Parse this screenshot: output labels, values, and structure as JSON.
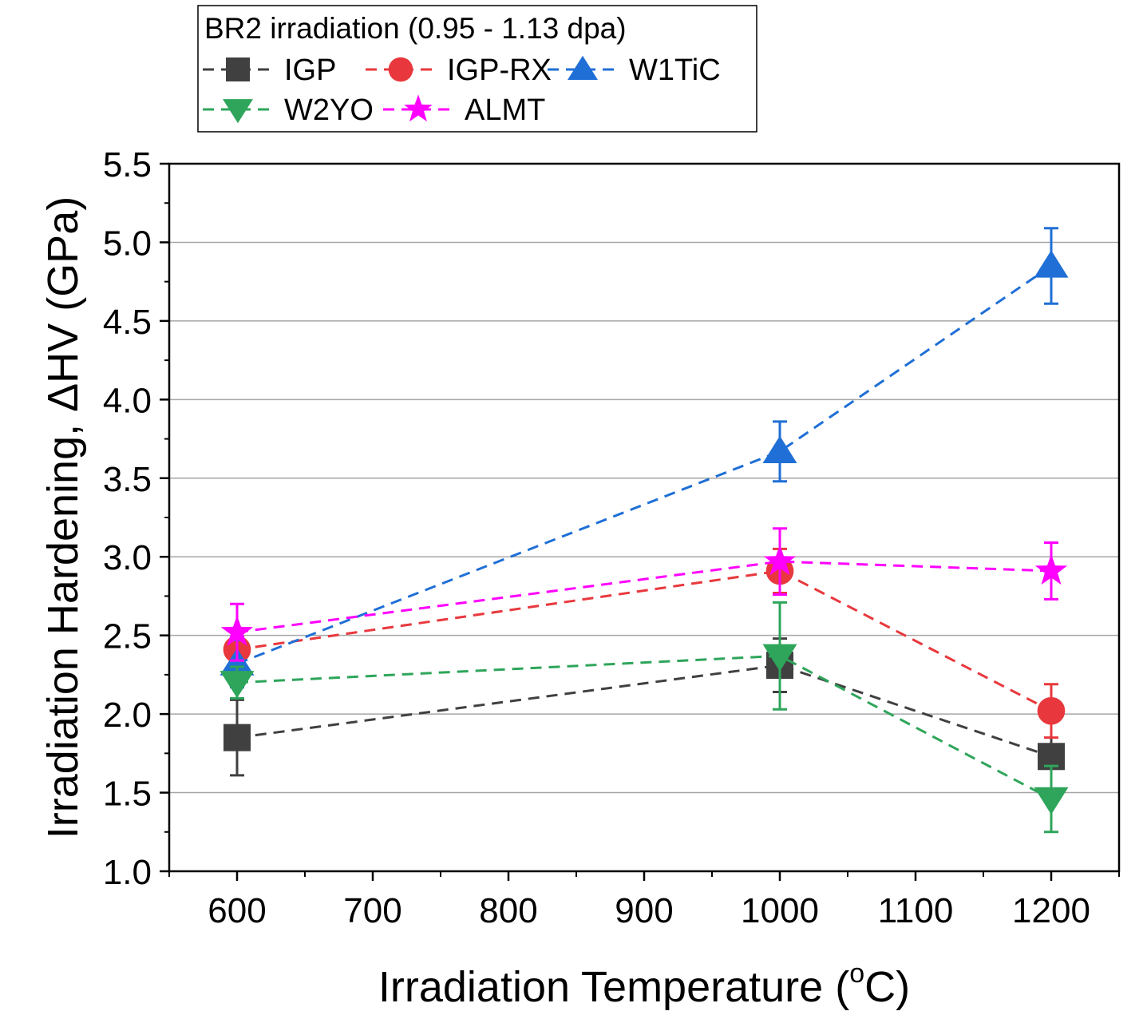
{
  "chart_data": {
    "type": "line",
    "legend_title": "BR2 irradiation (0.95 - 1.13 dpa)",
    "xlabel": "Irradiation Temperature (",
    "xlabel_sup": "o",
    "xlabel_end": "C)",
    "ylabel": "Irradiation Hardening, ΔHV (GPa)",
    "xlim": [
      550,
      1250
    ],
    "ylim": [
      1.0,
      5.5
    ],
    "x_ticks": [
      600,
      700,
      800,
      900,
      1000,
      1100,
      1200
    ],
    "x_tick_labels": [
      "600",
      "700",
      "800",
      "900",
      "1000",
      "1100",
      "1200"
    ],
    "y_ticks": [
      1.0,
      1.5,
      2.0,
      2.5,
      3.0,
      3.5,
      4.0,
      4.5,
      5.0,
      5.5
    ],
    "y_tick_labels": [
      "1.0",
      "1.5",
      "2.0",
      "2.5",
      "3.0",
      "3.5",
      "4.0",
      "4.5",
      "5.0",
      "5.5"
    ],
    "grid": "horizontal",
    "legend_position": "top, above plot",
    "x": [
      600,
      1000,
      1200
    ],
    "series": [
      {
        "name": "IGP",
        "marker": "square",
        "color": "#404040",
        "values": [
          1.85,
          2.31,
          1.73
        ],
        "errors": [
          0.24,
          0.17,
          0.24
        ]
      },
      {
        "name": "IGP-RX",
        "marker": "circle",
        "color": "#e8383d",
        "values": [
          2.41,
          2.91,
          2.02
        ],
        "errors": [
          0.12,
          0.14,
          0.17
        ]
      },
      {
        "name": "W1TiC",
        "marker": "triangle-up",
        "color": "#1f6fd6",
        "values": [
          2.32,
          3.67,
          4.85
        ],
        "errors": [
          0.15,
          0.19,
          0.24
        ]
      },
      {
        "name": "W2YO",
        "marker": "triangle-down",
        "color": "#2ea55a",
        "values": [
          2.2,
          2.37,
          1.46
        ],
        "errors": [
          0.1,
          0.34,
          0.21
        ]
      },
      {
        "name": "ALMT",
        "marker": "star",
        "color": "#ff00ff",
        "values": [
          2.52,
          2.97,
          2.91
        ],
        "errors": [
          0.18,
          0.21,
          0.18
        ]
      }
    ]
  }
}
